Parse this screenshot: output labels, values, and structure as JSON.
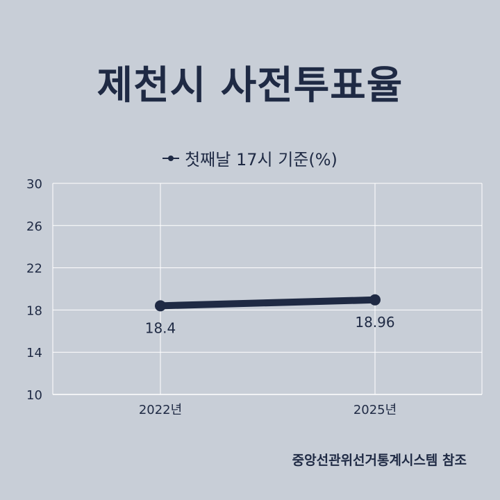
{
  "chart_data": {
    "type": "line",
    "title": "제천시 사전투표율",
    "categories": [
      "2022년",
      "2025년"
    ],
    "series": [
      {
        "name": "첫째날 17시 기준(%)",
        "values": [
          18.4,
          18.96
        ],
        "labels": [
          "18.4",
          "18.96"
        ]
      }
    ],
    "ylim": [
      10,
      30
    ],
    "yticks": [
      10,
      14,
      18,
      22,
      26,
      30
    ],
    "grid": true,
    "legend": "top-center",
    "line_color": "#1f2a44"
  },
  "source": "중앙선관위선거통계시스템 참조"
}
